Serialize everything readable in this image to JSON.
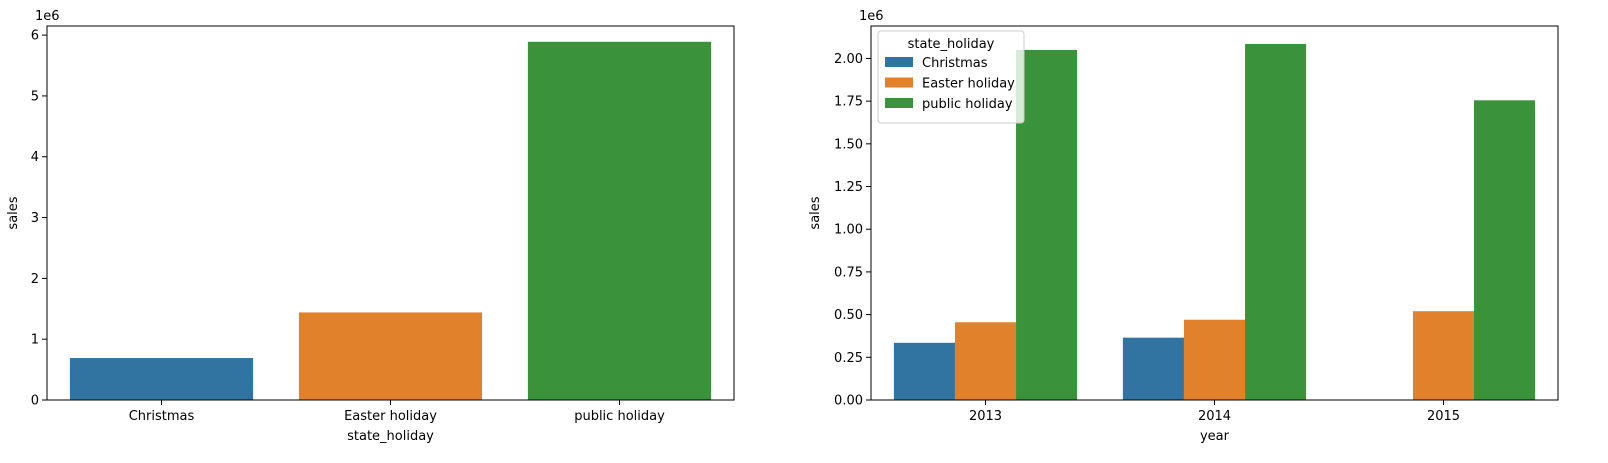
{
  "chart_data": [
    {
      "type": "bar",
      "categories": [
        "Christmas",
        "Easter holiday",
        "public holiday"
      ],
      "values": [
        690000,
        1440000,
        5890000
      ],
      "colors": [
        "#3274a1",
        "#e1812c",
        "#3a923a"
      ],
      "xlabel": "state_holiday",
      "ylabel": "sales",
      "offset_label": "1e6",
      "ylim": [
        0,
        6150000
      ],
      "yticks": [
        0,
        1000000,
        2000000,
        3000000,
        4000000,
        5000000,
        6000000
      ],
      "ytick_labels": [
        "0",
        "1",
        "2",
        "3",
        "4",
        "5",
        "6"
      ],
      "grid": false
    },
    {
      "type": "bar",
      "categories": [
        "2013",
        "2014",
        "2015"
      ],
      "series": [
        {
          "name": "Christmas",
          "color": "#3274a1",
          "values": [
            335000,
            365000,
            null
          ]
        },
        {
          "name": "Easter holiday",
          "color": "#e1812c",
          "values": [
            455000,
            470000,
            520000
          ]
        },
        {
          "name": "public holiday",
          "color": "#3a923a",
          "values": [
            2050000,
            2085000,
            1755000
          ]
        }
      ],
      "xlabel": "year",
      "ylabel": "sales",
      "offset_label": "1e6",
      "ylim": [
        0,
        2190000
      ],
      "yticks": [
        0,
        250000,
        500000,
        750000,
        1000000,
        1250000,
        1500000,
        1750000,
        2000000
      ],
      "ytick_labels": [
        "0.00",
        "0.25",
        "0.50",
        "0.75",
        "1.00",
        "1.25",
        "1.50",
        "1.75",
        "2.00"
      ],
      "legend": {
        "title": "state_holiday",
        "placement": "upper-left"
      },
      "grid": false
    }
  ]
}
